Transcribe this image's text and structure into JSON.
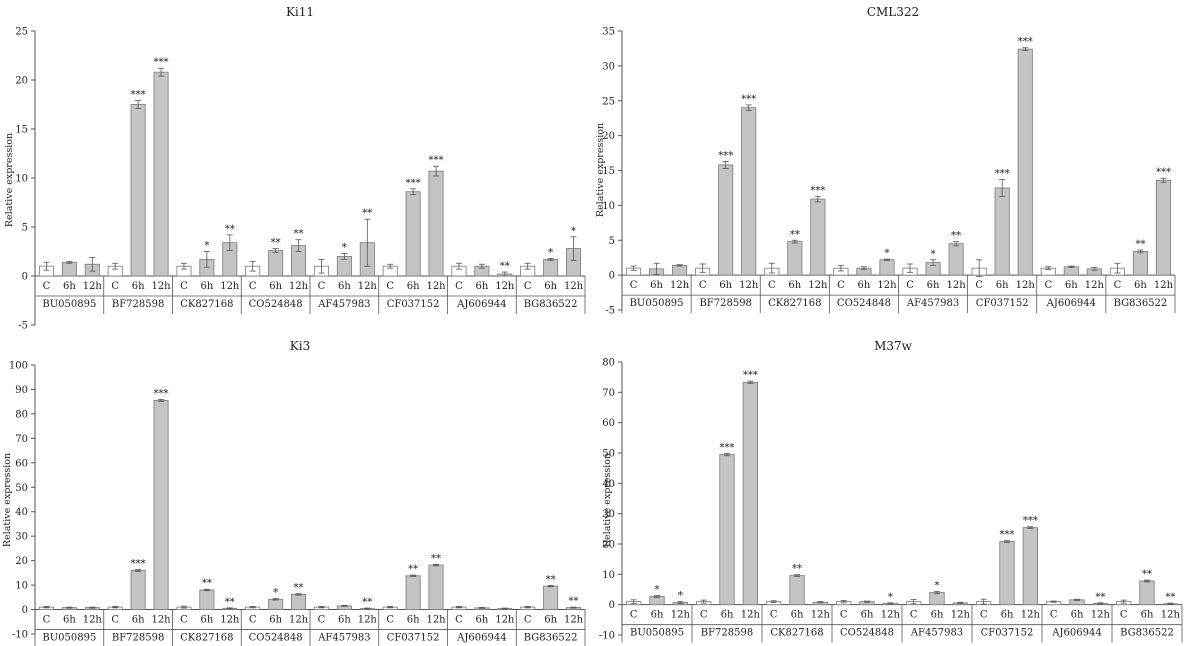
{
  "chart_data": [
    {
      "type": "bar",
      "title": "Ki11",
      "ylabel": "Relative expression",
      "ylim": [
        -5,
        25
      ],
      "yticks": [
        -5,
        0,
        5,
        10,
        15,
        20,
        25
      ],
      "timepoints": [
        "C",
        "6h",
        "12h"
      ],
      "groups": [
        "BU050895",
        "BF728598",
        "CK827168",
        "CO524848",
        "AF457983",
        "CF037152",
        "AJ606944",
        "BG836522"
      ],
      "values": [
        [
          1.0,
          1.4,
          1.2
        ],
        [
          1.0,
          17.5,
          20.8
        ],
        [
          1.0,
          1.7,
          3.4
        ],
        [
          1.0,
          2.6,
          3.1
        ],
        [
          1.0,
          2.0,
          3.4
        ],
        [
          1.0,
          8.6,
          10.7
        ],
        [
          1.0,
          1.0,
          0.2
        ],
        [
          1.0,
          1.7,
          2.8
        ]
      ],
      "errors": [
        [
          0.4,
          0.1,
          0.7
        ],
        [
          0.3,
          0.4,
          0.4
        ],
        [
          0.3,
          0.8,
          0.8
        ],
        [
          0.5,
          0.2,
          0.6
        ],
        [
          0.7,
          0.3,
          2.4
        ],
        [
          0.2,
          0.3,
          0.5
        ],
        [
          0.3,
          0.2,
          0.2
        ],
        [
          0.3,
          0.1,
          1.2
        ]
      ],
      "significance": [
        [
          "",
          "",
          ""
        ],
        [
          "",
          "***",
          "***"
        ],
        [
          "",
          "*",
          "**"
        ],
        [
          "",
          "**",
          "**"
        ],
        [
          "",
          "*",
          "**"
        ],
        [
          "",
          "***",
          "***"
        ],
        [
          "",
          "",
          "**"
        ],
        [
          "",
          "*",
          "*"
        ]
      ],
      "grid": false
    },
    {
      "type": "bar",
      "title": "CML322",
      "ylabel": "Relative expression",
      "ylim": [
        -5,
        35
      ],
      "yticks": [
        -5,
        0,
        5,
        10,
        15,
        20,
        25,
        30,
        35
      ],
      "timepoints": [
        "C",
        "6h",
        "12h"
      ],
      "groups": [
        "BU050895",
        "BF728598",
        "CK827168",
        "CO524848",
        "AF457983",
        "CF037152",
        "AJ606944",
        "BG836522"
      ],
      "values": [
        [
          1.0,
          0.9,
          1.4
        ],
        [
          1.0,
          15.8,
          24.0
        ],
        [
          1.0,
          4.8,
          10.9
        ],
        [
          1.0,
          1.0,
          2.2
        ],
        [
          1.0,
          1.8,
          4.5
        ],
        [
          1.0,
          12.5,
          32.4
        ],
        [
          1.0,
          1.2,
          0.9
        ],
        [
          1.0,
          3.4,
          13.6
        ]
      ],
      "errors": [
        [
          0.3,
          0.8,
          0.1
        ],
        [
          0.6,
          0.5,
          0.4
        ],
        [
          0.7,
          0.2,
          0.4
        ],
        [
          0.4,
          0.2,
          0.1
        ],
        [
          0.6,
          0.4,
          0.3
        ],
        [
          1.2,
          1.2,
          0.2
        ],
        [
          0.2,
          0.1,
          0.2
        ],
        [
          0.7,
          0.2,
          0.3
        ]
      ],
      "significance": [
        [
          "",
          "",
          ""
        ],
        [
          "",
          "***",
          "***"
        ],
        [
          "",
          "**",
          "***"
        ],
        [
          "",
          "",
          "*"
        ],
        [
          "",
          "*",
          "**"
        ],
        [
          "",
          "***",
          "***"
        ],
        [
          "",
          "",
          ""
        ],
        [
          "",
          "**",
          "***"
        ]
      ],
      "grid": false
    },
    {
      "type": "bar",
      "title": "Ki3",
      "ylabel": "Relative expression",
      "ylim": [
        -10,
        100
      ],
      "yticks": [
        -10,
        0,
        10,
        20,
        30,
        40,
        50,
        60,
        70,
        80,
        90,
        100
      ],
      "timepoints": [
        "C",
        "6h",
        "12h"
      ],
      "groups": [
        "BU050895",
        "BF728598",
        "CK827168",
        "CO524848",
        "AF457983",
        "CF037152",
        "AJ606944",
        "BG836522"
      ],
      "values": [
        [
          1.0,
          0.8,
          0.8
        ],
        [
          1.0,
          16.0,
          85.5
        ],
        [
          1.0,
          8.0,
          0.5
        ],
        [
          1.0,
          4.2,
          6.2
        ],
        [
          1.0,
          1.5,
          0.4
        ],
        [
          1.0,
          13.8,
          18.2
        ],
        [
          1.0,
          0.7,
          0.4
        ],
        [
          1.0,
          9.6,
          0.8
        ]
      ],
      "errors": [
        [
          0.3,
          0.2,
          0.2
        ],
        [
          0.3,
          0.4,
          0.4
        ],
        [
          0.4,
          0.3,
          0.2
        ],
        [
          0.3,
          0.3,
          0.3
        ],
        [
          0.3,
          0.2,
          0.2
        ],
        [
          0.3,
          0.3,
          0.3
        ],
        [
          0.3,
          0.2,
          0.2
        ],
        [
          0.3,
          0.3,
          0.2
        ]
      ],
      "significance": [
        [
          "",
          "",
          ""
        ],
        [
          "",
          "***",
          "***"
        ],
        [
          "",
          "**",
          "**"
        ],
        [
          "",
          "*",
          "**"
        ],
        [
          "",
          "",
          "**"
        ],
        [
          "",
          "**",
          "**"
        ],
        [
          "",
          "",
          ""
        ],
        [
          "",
          "**",
          "**"
        ]
      ],
      "grid": false
    },
    {
      "type": "bar",
      "title": "M37w",
      "ylabel": "Relative expression",
      "ylim": [
        -10,
        80
      ],
      "yticks": [
        -10,
        0,
        10,
        20,
        30,
        40,
        50,
        60,
        70,
        80
      ],
      "timepoints": [
        "C",
        "6h",
        "12h"
      ],
      "groups": [
        "BU050895",
        "BF728598",
        "CK827168",
        "CO524848",
        "AF457983",
        "CF037152",
        "AJ606944",
        "BG836522"
      ],
      "values": [
        [
          1.0,
          2.7,
          0.7
        ],
        [
          1.0,
          49.5,
          73.3
        ],
        [
          1.0,
          9.6,
          0.8
        ],
        [
          1.0,
          1.0,
          0.4
        ],
        [
          1.0,
          4.0,
          0.6
        ],
        [
          1.0,
          20.8,
          25.4
        ],
        [
          1.0,
          1.6,
          0.4
        ],
        [
          1.0,
          7.8,
          0.3
        ]
      ],
      "errors": [
        [
          0.6,
          0.3,
          0.3
        ],
        [
          0.5,
          0.4,
          0.4
        ],
        [
          0.3,
          0.3,
          0.2
        ],
        [
          0.4,
          0.2,
          0.2
        ],
        [
          0.7,
          0.4,
          0.2
        ],
        [
          0.8,
          0.3,
          0.3
        ],
        [
          0.2,
          0.2,
          0.2
        ],
        [
          0.5,
          0.3,
          0.2
        ]
      ],
      "significance": [
        [
          "",
          "*",
          "*"
        ],
        [
          "",
          "***",
          "***"
        ],
        [
          "",
          "**",
          ""
        ],
        [
          "",
          "",
          "*"
        ],
        [
          "",
          "*",
          ""
        ],
        [
          "",
          "***",
          "***"
        ],
        [
          "",
          "",
          "**"
        ],
        [
          "",
          "**",
          "**"
        ]
      ],
      "grid": false
    }
  ],
  "colors": {
    "control_bar": "#ffffff",
    "treated_bar": "#c4c4c4",
    "bar_stroke": "#7a7a7a",
    "axis": "#555555",
    "text": "#222222"
  }
}
